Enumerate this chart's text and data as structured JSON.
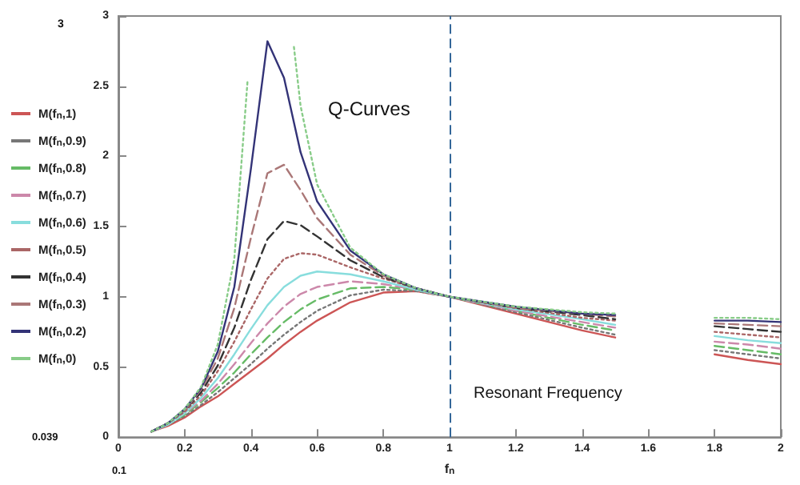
{
  "chart_data": {
    "type": "line",
    "xlabel": "f$_{n}$",
    "x": [
      0.1,
      0.15,
      0.2,
      0.25,
      0.3,
      0.35,
      0.4,
      0.45,
      0.5,
      0.55,
      0.6,
      0.7,
      0.8,
      0.9,
      1,
      1.2,
      1.4,
      1.5,
      1.65,
      1.8,
      1.9,
      2
    ],
    "series": [
      {
        "name": "M(f$_{n}$,1)",
        "color": "#cc5555",
        "line_style": "solid",
        "values": [
          0.04,
          0.08,
          0.14,
          0.22,
          0.29,
          0.38,
          0.47,
          0.56,
          0.66,
          0.75,
          0.83,
          0.96,
          1.03,
          1.04,
          1,
          0.88,
          0.76,
          0.71,
          null,
          0.59,
          0.55,
          0.52
        ]
      },
      {
        "name": "M(f$_{n}$,0.9)",
        "color": "#777777",
        "line_style": "dotted",
        "values": [
          0.04,
          0.09,
          0.15,
          0.23,
          0.32,
          0.42,
          0.52,
          0.63,
          0.73,
          0.82,
          0.9,
          1.01,
          1.05,
          1.04,
          1,
          0.89,
          0.78,
          0.73,
          null,
          0.62,
          0.59,
          0.56
        ]
      },
      {
        "name": "M(f$_{n}$,0.8)",
        "color": "#66bb66",
        "line_style": "dashed",
        "values": [
          0.04,
          0.09,
          0.16,
          0.25,
          0.35,
          0.46,
          0.59,
          0.71,
          0.82,
          0.91,
          0.98,
          1.06,
          1.07,
          1.05,
          1,
          0.9,
          0.8,
          0.76,
          null,
          0.65,
          0.62,
          0.59
        ]
      },
      {
        "name": "M(f$_{n}$,0.7)",
        "color": "#cc88aa",
        "line_style": "dashed",
        "values": [
          0.04,
          0.09,
          0.17,
          0.26,
          0.38,
          0.52,
          0.67,
          0.81,
          0.93,
          1.02,
          1.07,
          1.11,
          1.09,
          1.05,
          1,
          0.9,
          0.82,
          0.78,
          null,
          0.68,
          0.66,
          0.63
        ]
      },
      {
        "name": "M(f$_{n}$,0.6)",
        "color": "#88dddd",
        "line_style": "solid",
        "values": [
          0.04,
          0.09,
          0.17,
          0.28,
          0.42,
          0.59,
          0.77,
          0.94,
          1.07,
          1.15,
          1.18,
          1.16,
          1.11,
          1.05,
          1,
          0.91,
          0.84,
          0.8,
          null,
          0.72,
          0.69,
          0.67
        ]
      },
      {
        "name": "M(f$_{n}$,0.5)",
        "color": "#aa6666",
        "line_style": "dotted",
        "values": [
          0.04,
          0.1,
          0.18,
          0.3,
          0.47,
          0.68,
          0.91,
          1.13,
          1.27,
          1.31,
          1.3,
          1.21,
          1.13,
          1.06,
          1,
          0.92,
          0.85,
          0.83,
          null,
          0.75,
          0.73,
          0.71
        ]
      },
      {
        "name": "M(f$_{n}$,0.4)",
        "color": "#333333",
        "line_style": "dashed",
        "values": [
          0.04,
          0.1,
          0.19,
          0.32,
          0.51,
          0.78,
          1.12,
          1.41,
          1.54,
          1.51,
          1.43,
          1.26,
          1.14,
          1.06,
          1,
          0.92,
          0.87,
          0.84,
          null,
          0.79,
          0.77,
          0.75
        ]
      },
      {
        "name": "M(f$_{n}$,0.3)",
        "color": "#aa7777",
        "line_style": "dashed",
        "values": [
          0.04,
          0.1,
          0.19,
          0.34,
          0.56,
          0.92,
          1.42,
          1.88,
          1.94,
          1.76,
          1.56,
          1.3,
          1.15,
          1.06,
          1,
          0.92,
          0.88,
          0.86,
          null,
          0.81,
          0.8,
          0.79
        ]
      },
      {
        "name": "M(f$_{n}$,0.2)",
        "color": "#333377",
        "line_style": "solid",
        "values": [
          0.04,
          0.1,
          0.2,
          0.35,
          0.61,
          1.07,
          1.91,
          2.82,
          2.56,
          2.03,
          1.68,
          1.33,
          1.16,
          1.06,
          1,
          0.93,
          0.88,
          0.87,
          null,
          0.83,
          0.83,
          0.82
        ]
      },
      {
        "name": "M(f$_{n}$,0)",
        "color": "#88cc88",
        "line_style": "dotted",
        "x": [
          0.1,
          0.15,
          0.2,
          0.25,
          0.3,
          0.35,
          0.39,
          0.45,
          0.53,
          0.55,
          0.6,
          0.7,
          0.8,
          0.9,
          1,
          1.2,
          1.4,
          1.5,
          1.65,
          1.8,
          1.9,
          2
        ],
        "values": [
          0.04,
          0.1,
          0.2,
          0.36,
          0.66,
          1.27,
          2.54,
          null,
          2.78,
          2.36,
          1.8,
          1.35,
          1.16,
          1.06,
          1,
          0.93,
          0.89,
          0.88,
          null,
          0.85,
          0.85,
          0.84
        ]
      }
    ],
    "xlim": [
      0,
      2
    ],
    "xticks": [
      0,
      0.2,
      0.4,
      0.6,
      0.8,
      1,
      1.2,
      1.4,
      1.6,
      1.8,
      2
    ],
    "ylim": [
      0,
      3
    ],
    "yticks": [
      0,
      0.5,
      1,
      1.5,
      2,
      2.5,
      3
    ],
    "ref_lines": [
      {
        "axis": "x",
        "value": 1,
        "label": "Resonant Frequency",
        "color": "#336699",
        "line_style": "dashed"
      }
    ],
    "annotations": [
      "Q-Curves",
      "3",
      "0.039",
      "0.1"
    ],
    "legend": "left",
    "grid": false,
    "marker": "none"
  }
}
